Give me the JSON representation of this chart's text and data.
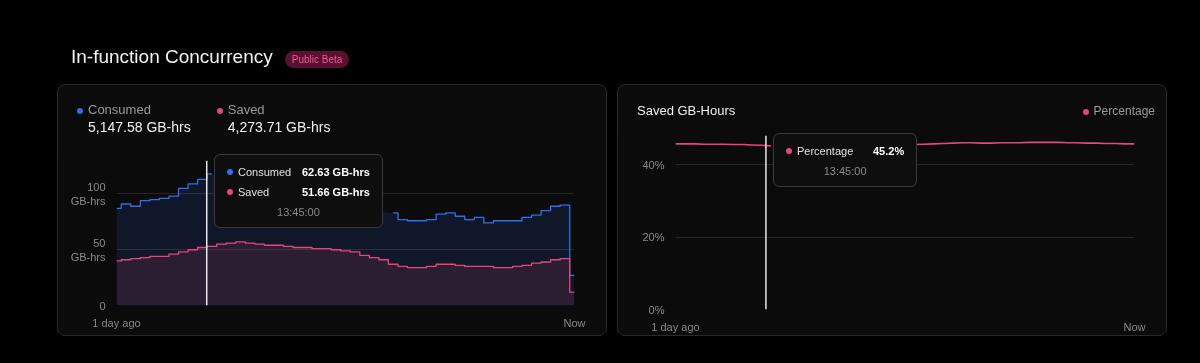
{
  "chart_data": [
    {
      "type": "area",
      "title": "In-function Concurrency",
      "subtitle": "Public Beta",
      "categories": [
        "1 day ago",
        null,
        null,
        null,
        null,
        null,
        null,
        null,
        null,
        null,
        null,
        null,
        null,
        null,
        null,
        null,
        null,
        null,
        null,
        null,
        null,
        null,
        null,
        null,
        null,
        null,
        null,
        null,
        null,
        null,
        null,
        null,
        null,
        null,
        null,
        null,
        null,
        null,
        null,
        null,
        null,
        null,
        null,
        null,
        null,
        null,
        null,
        null,
        "Now"
      ],
      "ylim": [
        0,
        130
      ],
      "yticks": [
        0,
        {
          "value": 50,
          "label": "50\nGB-hrs"
        },
        {
          "value": 100,
          "label": "100\nGB-hrs"
        }
      ],
      "grid": "y",
      "legend": "top left",
      "marker": "none",
      "series": [
        {
          "name": "Consumed",
          "color": "#2f6fed",
          "values": [
            87,
            91,
            89,
            94,
            95,
            96,
            98,
            105,
            109,
            113,
            118,
            null,
            null,
            null,
            null,
            null,
            null,
            null,
            null,
            null,
            null,
            null,
            null,
            null,
            null,
            null,
            null,
            null,
            null,
            83,
            77,
            76,
            76,
            77,
            82,
            83,
            80,
            77,
            79,
            74,
            76,
            76,
            76,
            79,
            81,
            85,
            89,
            90,
            27
          ]
        },
        {
          "name": "Saved",
          "color": "#e8457f",
          "values": [
            40,
            41,
            42,
            43,
            44,
            44,
            46,
            48,
            50,
            52,
            53,
            55,
            56,
            57,
            56,
            55,
            54,
            54,
            53,
            52,
            52,
            51,
            51,
            50,
            49,
            48,
            45,
            43,
            41,
            37,
            35,
            34,
            34,
            35,
            37,
            37,
            36,
            35,
            35,
            35,
            34,
            34,
            35,
            36,
            38,
            39,
            41,
            42,
            12
          ]
        }
      ],
      "annotations": [
        "5,147.58 GB-hrs",
        "4,273.71 GB-hrs",
        "Consumed",
        "62.63 GB-hrs",
        "Saved",
        "51.66 GB-hrs",
        "13:45:00"
      ]
    },
    {
      "type": "line",
      "title": "Saved GB-Hours",
      "categories": [
        "1 day ago",
        null,
        null,
        null,
        null,
        null,
        null,
        null,
        null,
        null,
        null,
        null,
        null,
        null,
        null,
        null,
        null,
        null,
        null,
        null,
        null,
        null,
        null,
        null,
        null,
        null,
        null,
        null,
        null,
        null,
        null,
        null,
        null,
        null,
        null,
        null,
        null,
        null,
        null,
        null,
        null,
        null,
        null,
        null,
        null,
        null,
        null,
        null,
        "Now"
      ],
      "ylim": [
        0,
        48
      ],
      "yticks": [
        {
          "value": 0,
          "label": "0%"
        },
        {
          "value": 20,
          "label": "20%"
        },
        {
          "value": 40,
          "label": "40%"
        }
      ],
      "grid": "y",
      "legend": "top right",
      "marker": "none",
      "series": [
        {
          "name": "Percentage",
          "color": "#e8457f",
          "values": [
            45.7,
            45.7,
            45.7,
            45.6,
            45.6,
            45.6,
            45.5,
            45.5,
            45.4,
            45.3,
            45.1,
            null,
            null,
            null,
            null,
            null,
            null,
            null,
            null,
            null,
            null,
            null,
            null,
            null,
            null,
            45.5,
            45.6,
            45.7,
            45.8,
            45.9,
            46.0,
            46.0,
            45.9,
            45.9,
            46.0,
            46.0,
            46.0,
            46.1,
            46.1,
            46.1,
            46.1,
            46.0,
            46.0,
            45.9,
            45.9,
            45.8,
            45.8,
            45.7,
            45.7
          ]
        }
      ],
      "annotations": [
        "Percentage",
        "45.2%",
        "13:45:00"
      ]
    }
  ]
}
